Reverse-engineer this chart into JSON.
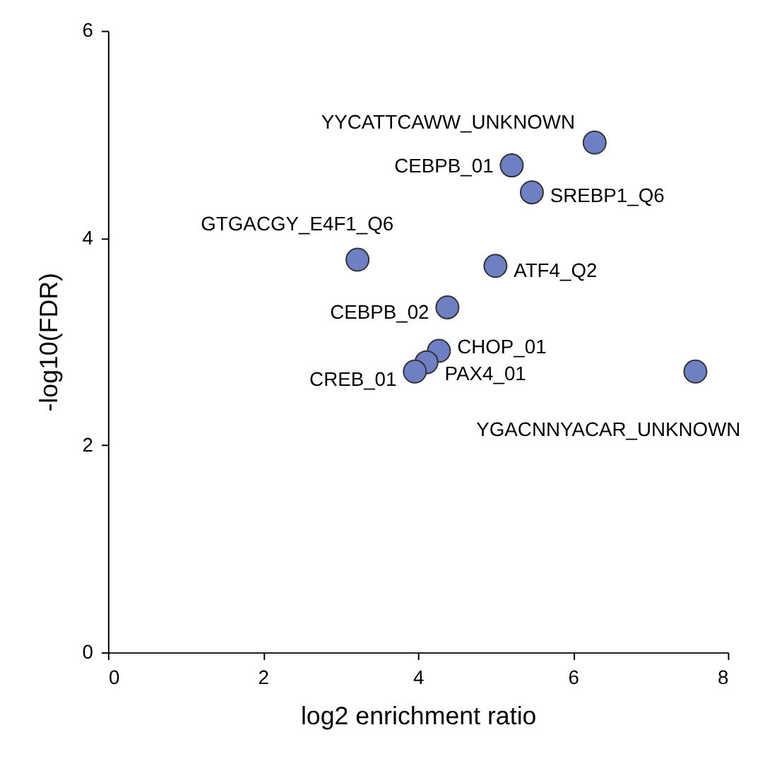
{
  "chart_data": {
    "type": "scatter",
    "xlabel": "log2 enrichment ratio",
    "ylabel": "-log10(FDR)",
    "x": [
      6.28,
      5.21,
      5.47,
      3.22,
      5.0,
      4.38,
      4.27,
      4.11,
      3.96,
      7.58
    ],
    "series": [
      {
        "color": "#6f7fc4",
        "values": [
          4.92,
          4.7,
          4.44,
          3.79,
          3.73,
          3.33,
          2.91,
          2.8,
          2.71,
          2.71
        ]
      }
    ],
    "annotations": [
      {
        "text": "YYCATTCAWW_UNKNOWN",
        "x": 6.28,
        "y": 4.92
      },
      {
        "text": "CEBPB_01",
        "x": 5.21,
        "y": 4.7
      },
      {
        "text": "SREBP1_Q6",
        "x": 5.47,
        "y": 4.44
      },
      {
        "text": "GTGACGY_E4F1_Q6",
        "x": 3.22,
        "y": 3.79
      },
      {
        "text": "ATF4_Q2",
        "x": 5.0,
        "y": 3.73
      },
      {
        "text": "CEBPB_02",
        "x": 4.38,
        "y": 3.33
      },
      {
        "text": "CHOP_01",
        "x": 4.27,
        "y": 2.91
      },
      {
        "text": "PAX4_01",
        "x": 4.11,
        "y": 2.8
      },
      {
        "text": "CREB_01",
        "x": 3.96,
        "y": 2.71
      },
      {
        "text": "YGACNNYACAR_UNKNOWN",
        "x": 7.58,
        "y": 2.71
      }
    ],
    "xlim": [
      0,
      8
    ],
    "xticks": [
      0,
      2,
      4,
      6,
      8
    ],
    "ylim": [
      0,
      6
    ],
    "yticks": [
      0,
      2,
      4,
      6
    ],
    "grid": false,
    "marker": "circle"
  }
}
